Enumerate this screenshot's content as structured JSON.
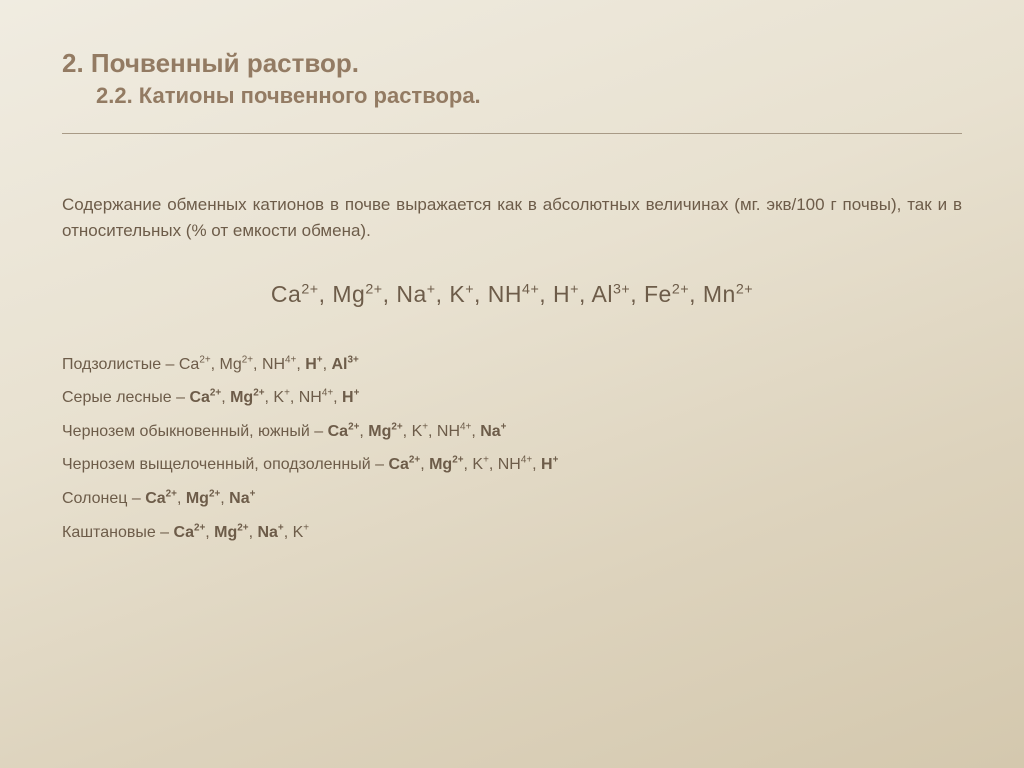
{
  "title": {
    "line1": "2. Почвенный раствор.",
    "line2": "2.2. Катионы почвенного раствора."
  },
  "intro": "Содержание обменных катионов в почве выражается как в абсолютных величинах (мг. экв/100 г почвы), так и в относительных (% от емкости обмена).",
  "main_cations": [
    {
      "sym": "Ca",
      "sup": "2+",
      "bold": false
    },
    {
      "sym": "Mg",
      "sup": "2+",
      "bold": false
    },
    {
      "sym": "Na",
      "sup": "+",
      "bold": false
    },
    {
      "sym": "K",
      "sup": "+",
      "bold": false
    },
    {
      "sym": "NH",
      "sup": "4+",
      "bold": false
    },
    {
      "sym": "H",
      "sup": "+",
      "bold": false
    },
    {
      "sym": "Al",
      "sup": "3+",
      "bold": false
    },
    {
      "sym": "Fe",
      "sup": "2+",
      "bold": false
    },
    {
      "sym": "Mn",
      "sup": "2+",
      "bold": false
    }
  ],
  "soils": [
    {
      "name": "Подзолистые",
      "ions": [
        {
          "sym": "Ca",
          "sup": "2+",
          "bold": false
        },
        {
          "sym": "Mg",
          "sup": "2+",
          "bold": false
        },
        {
          "sym": "NH",
          "sup": "4+",
          "bold": false
        },
        {
          "sym": "H",
          "sup": "+",
          "bold": true
        },
        {
          "sym": "Al",
          "sup": "3+",
          "bold": true
        }
      ]
    },
    {
      "name": "Серые лесные",
      "ions": [
        {
          "sym": "Ca",
          "sup": "2+",
          "bold": true
        },
        {
          "sym": "Mg",
          "sup": "2+",
          "bold": true
        },
        {
          "sym": "K",
          "sup": "+",
          "bold": false
        },
        {
          "sym": "NH",
          "sup": "4+",
          "bold": false
        },
        {
          "sym": "H",
          "sup": "+",
          "bold": true
        }
      ]
    },
    {
      "name": "Чернозем обыкновенный, южный",
      "ions": [
        {
          "sym": "Ca",
          "sup": "2+",
          "bold": true
        },
        {
          "sym": "Mg",
          "sup": "2+",
          "bold": true
        },
        {
          "sym": "K",
          "sup": "+",
          "bold": false
        },
        {
          "sym": "NH",
          "sup": "4+",
          "bold": false
        },
        {
          "sym": "Na",
          "sup": "+",
          "bold": true
        }
      ]
    },
    {
      "name": "Чернозем выщелоченный, оподзоленный",
      "ions": [
        {
          "sym": "Ca",
          "sup": "2+",
          "bold": true
        },
        {
          "sym": "Mg",
          "sup": "2+",
          "bold": true
        },
        {
          "sym": "K",
          "sup": "+",
          "bold": false
        },
        {
          "sym": "NH",
          "sup": "4+",
          "bold": false
        },
        {
          "sym": "H",
          "sup": "+",
          "bold": true
        }
      ]
    },
    {
      "name": "Солонец",
      "ions": [
        {
          "sym": "Ca",
          "sup": "2+",
          "bold": true
        },
        {
          "sym": "Mg",
          "sup": "2+",
          "bold": true
        },
        {
          "sym": "Na",
          "sup": "+",
          "bold": true
        }
      ]
    },
    {
      "name": "Каштановые",
      "ions": [
        {
          "sym": "Ca",
          "sup": "2+",
          "bold": true
        },
        {
          "sym": "Mg",
          "sup": "2+",
          "bold": true
        },
        {
          "sym": "Na",
          "sup": "+",
          "bold": true
        },
        {
          "sym": "K",
          "sup": "+",
          "bold": false
        }
      ]
    }
  ],
  "colors": {
    "heading": "#937b63",
    "body": "#6d5c49",
    "rule": "#a89a86",
    "bg_top": "#f0ece1",
    "bg_bottom": "#d4c8ae"
  },
  "typography": {
    "title_fontsize_pt": 20,
    "subtitle_fontsize_pt": 17,
    "body_fontsize_pt": 13,
    "formula_fontsize_pt": 17,
    "font_family": "Verdana"
  }
}
